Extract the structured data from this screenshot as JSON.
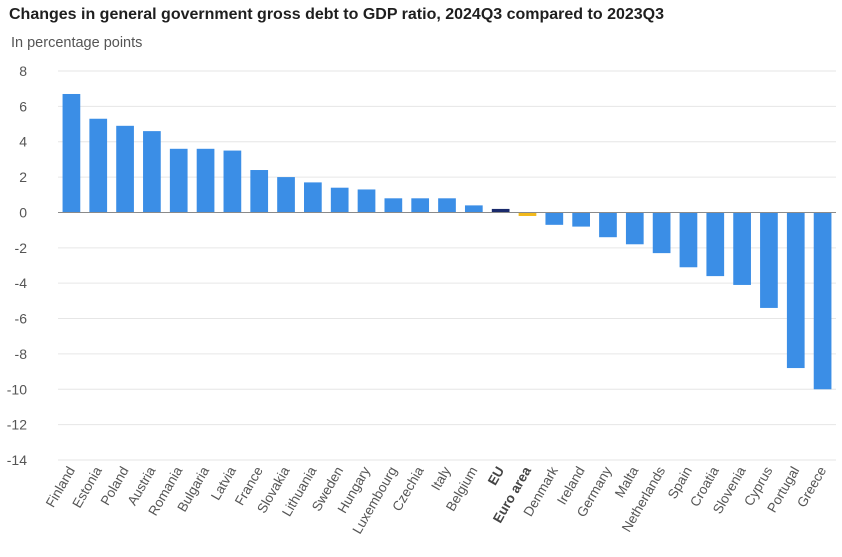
{
  "chart_data": {
    "type": "bar",
    "title": "Changes in general government gross debt to GDP ratio, 2024Q3 compared to 2023Q3",
    "subtitle": "In percentage points",
    "xlabel": "",
    "ylabel": "",
    "ylim": [
      -14,
      8
    ],
    "yticks": [
      8,
      6,
      4,
      2,
      0,
      -2,
      -4,
      -6,
      -8,
      -10,
      -12,
      -14
    ],
    "grid": true,
    "colors": {
      "default": "#3b8ee6",
      "EU": "#1a2a6c",
      "Euro area": "#f2b91c"
    },
    "bold_categories": [
      "EU",
      "Euro area"
    ],
    "categories": [
      "Finland",
      "Estonia",
      "Poland",
      "Austria",
      "Romania",
      "Bulgaria",
      "Latvia",
      "France",
      "Slovakia",
      "Lithuania",
      "Sweden",
      "Hungary",
      "Luxembourg",
      "Czechia",
      "Italy",
      "Belgium",
      "EU",
      "Euro area",
      "Denmark",
      "Ireland",
      "Germany",
      "Malta",
      "Netherlands",
      "Spain",
      "Croatia",
      "Slovenia",
      "Cyprus",
      "Portugal",
      "Greece"
    ],
    "values": [
      6.7,
      5.3,
      4.9,
      4.6,
      3.6,
      3.6,
      3.5,
      2.4,
      2.0,
      1.7,
      1.4,
      1.3,
      0.8,
      0.8,
      0.8,
      0.4,
      0.2,
      -0.2,
      -0.7,
      -0.8,
      -1.4,
      -1.8,
      -2.3,
      -3.1,
      -3.6,
      -4.1,
      -5.4,
      -8.8,
      -10.0
    ]
  }
}
